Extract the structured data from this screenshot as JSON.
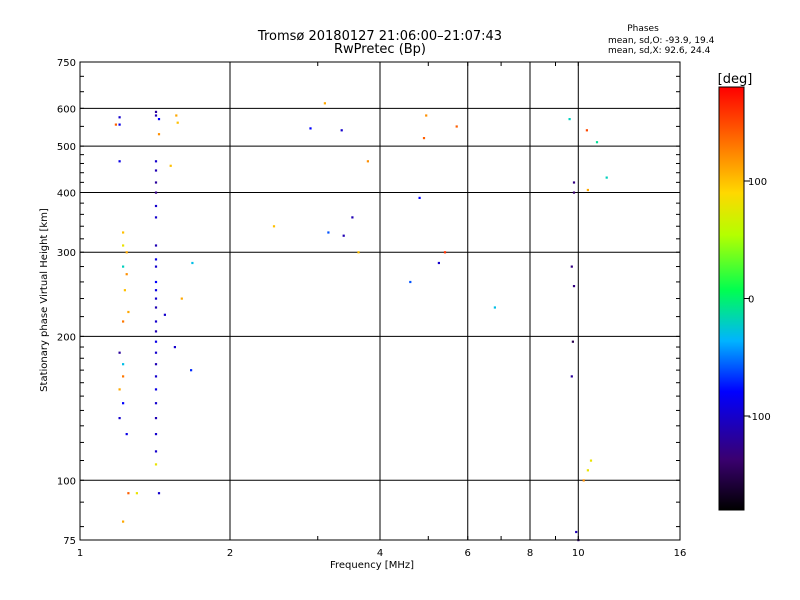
{
  "chart_data": {
    "type": "scatter",
    "title": "Tromsø 20180127 21:06:00–21:07:43",
    "subtitle": "RwPretec (Bp)",
    "xlabel": "Frequency [MHz]",
    "ylabel": "Stationary phase Virtual Height [km]",
    "x_scale": "log",
    "y_scale": "log",
    "xlim": [
      1,
      16
    ],
    "ylim": [
      75,
      750
    ],
    "grid": true,
    "x_ticks": [
      1,
      2,
      4,
      6,
      8,
      10,
      16
    ],
    "x_tick_labels": [
      "1",
      "2",
      "4",
      "6",
      "8",
      "10",
      "16"
    ],
    "y_ticks": [
      75,
      100,
      200,
      300,
      400,
      500,
      600,
      750
    ],
    "y_tick_labels": [
      "75",
      "100",
      "200",
      "300",
      "400",
      "500",
      "600",
      "750"
    ],
    "phases": {
      "title": "Phases",
      "line_o": "mean, sd,O: -93.9, 19.4",
      "line_x": "mean, sd,X:  92.6, 24.4",
      "o_mean": -93.9,
      "o_sd": 19.4,
      "x_mean": 92.6,
      "x_sd": 24.4
    },
    "colorbar": {
      "label": "[deg]",
      "range": [
        -180,
        180
      ],
      "ticks": [
        100,
        0,
        -100
      ],
      "tick_labels": [
        "100",
        "0",
        "-100"
      ],
      "palette": "rainbow (black → violet → blue → cyan → green → yellow → red)"
    },
    "points": [
      [
        1.2,
        575,
        -100
      ],
      [
        1.2,
        555,
        -90
      ],
      [
        1.2,
        465,
        -90
      ],
      [
        1.22,
        330,
        100
      ],
      [
        1.22,
        310,
        80
      ],
      [
        1.24,
        300,
        110
      ],
      [
        1.22,
        280,
        -20
      ],
      [
        1.24,
        270,
        120
      ],
      [
        1.23,
        250,
        100
      ],
      [
        1.25,
        225,
        110
      ],
      [
        1.22,
        215,
        130
      ],
      [
        1.2,
        185,
        -120
      ],
      [
        1.22,
        175,
        -30
      ],
      [
        1.22,
        165,
        130
      ],
      [
        1.2,
        155,
        110
      ],
      [
        1.22,
        145,
        -80
      ],
      [
        1.2,
        135,
        -100
      ],
      [
        1.24,
        125,
        -90
      ],
      [
        1.25,
        94,
        140
      ],
      [
        1.22,
        82,
        110
      ],
      [
        1.18,
        555,
        140
      ],
      [
        1.3,
        94,
        80
      ],
      [
        1.42,
        590,
        -120
      ],
      [
        1.42,
        580,
        -110
      ],
      [
        1.42,
        465,
        -100
      ],
      [
        1.42,
        445,
        -110
      ],
      [
        1.42,
        420,
        -120
      ],
      [
        1.42,
        400,
        -130
      ],
      [
        1.42,
        375,
        -100
      ],
      [
        1.42,
        355,
        -100
      ],
      [
        1.42,
        310,
        -110
      ],
      [
        1.42,
        290,
        -90
      ],
      [
        1.42,
        280,
        -100
      ],
      [
        1.42,
        260,
        -80
      ],
      [
        1.42,
        250,
        -90
      ],
      [
        1.42,
        240,
        -100
      ],
      [
        1.42,
        230,
        -110
      ],
      [
        1.42,
        215,
        -100
      ],
      [
        1.42,
        205,
        -110
      ],
      [
        1.42,
        195,
        -90
      ],
      [
        1.42,
        185,
        -100
      ],
      [
        1.42,
        175,
        -110
      ],
      [
        1.42,
        165,
        -100
      ],
      [
        1.42,
        155,
        -90
      ],
      [
        1.42,
        145,
        -100
      ],
      [
        1.42,
        135,
        -110
      ],
      [
        1.42,
        125,
        -100
      ],
      [
        1.42,
        115,
        -100
      ],
      [
        1.42,
        108,
        80
      ],
      [
        1.44,
        94,
        -100
      ],
      [
        1.44,
        570,
        -80
      ],
      [
        1.44,
        530,
        120
      ],
      [
        1.56,
        580,
        110
      ],
      [
        1.57,
        560,
        100
      ],
      [
        1.52,
        455,
        100
      ],
      [
        1.6,
        240,
        110
      ],
      [
        1.68,
        285,
        -30
      ],
      [
        1.48,
        222,
        -100
      ],
      [
        1.55,
        190,
        -100
      ],
      [
        1.67,
        170,
        -70
      ],
      [
        2.45,
        340,
        100
      ],
      [
        3.1,
        615,
        110
      ],
      [
        2.9,
        545,
        -80
      ],
      [
        3.35,
        540,
        -100
      ],
      [
        3.78,
        465,
        120
      ],
      [
        3.52,
        355,
        -110
      ],
      [
        3.38,
        325,
        -110
      ],
      [
        3.62,
        300,
        100
      ],
      [
        4.95,
        580,
        120
      ],
      [
        4.9,
        520,
        140
      ],
      [
        5.7,
        550,
        140
      ],
      [
        6.8,
        230,
        -30
      ],
      [
        9.6,
        570,
        -20
      ],
      [
        10.4,
        540,
        150
      ],
      [
        10.9,
        510,
        -10
      ],
      [
        11.4,
        430,
        -20
      ],
      [
        10.45,
        405,
        110
      ],
      [
        9.8,
        420,
        -130
      ],
      [
        9.8,
        400,
        -140
      ],
      [
        9.7,
        280,
        -130
      ],
      [
        9.8,
        255,
        -130
      ],
      [
        9.75,
        195,
        -150
      ],
      [
        9.7,
        165,
        -120
      ],
      [
        10.0,
        75,
        -130
      ],
      [
        9.9,
        78,
        -110
      ],
      [
        10.25,
        100,
        120
      ],
      [
        10.45,
        105,
        80
      ],
      [
        10.6,
        110,
        80
      ],
      [
        4.8,
        390,
        -80
      ],
      [
        5.4,
        300,
        160
      ],
      [
        5.25,
        285,
        -100
      ],
      [
        4.6,
        260,
        -60
      ],
      [
        3.15,
        330,
        -60
      ]
    ]
  }
}
